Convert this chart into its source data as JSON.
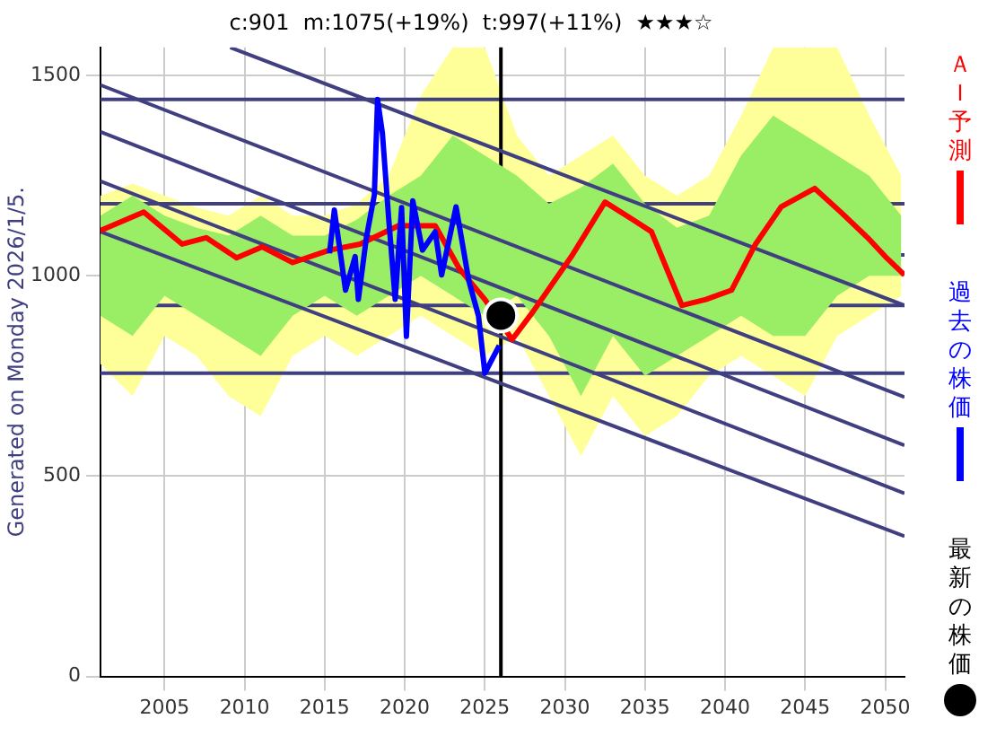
{
  "chart_data": {
    "type": "line",
    "title": "c:901  m:1075(+19%)  t:997(+11%)  ★★★☆",
    "annotations": [
      "Generated on Monday 2026/1/5."
    ],
    "xlim": [
      2001,
      2051.2
    ],
    "xticks": [
      2005,
      2010,
      2015,
      2020,
      2025,
      2030,
      2035,
      2040,
      2045,
      2050
    ],
    "ylim": [
      0,
      1570
    ],
    "yticks": [
      0,
      500,
      1000,
      1500
    ],
    "grid": true,
    "legend": "right",
    "marker": "none",
    "series": [
      {
        "color": "#ffff99",
        "x": [
          2001,
          2003,
          2005,
          2007,
          2009,
          2011,
          2013,
          2015,
          2017,
          2019,
          2021,
          2023,
          2025,
          2027,
          2029,
          2031,
          2033,
          2035,
          2037,
          2039,
          2041,
          2043,
          2045,
          2047,
          2049,
          2051
        ],
        "values": [
          null,
          null,
          null,
          null,
          null,
          null,
          null,
          null,
          null,
          null,
          null,
          null,
          null,
          null,
          null,
          null,
          null,
          null,
          null,
          null,
          null,
          null,
          null,
          null,
          null,
          null
        ],
        "lower": [
          780,
          700,
          850,
          800,
          700,
          650,
          800,
          850,
          800,
          850,
          900,
          850,
          800,
          850,
          700,
          550,
          700,
          600,
          650,
          750,
          800,
          750,
          700,
          850,
          900,
          950
        ],
        "upper": [
          1200,
          1230,
          1200,
          1170,
          1150,
          1200,
          1150,
          1150,
          1180,
          1250,
          1450,
          1570,
          1570,
          1350,
          1250,
          1300,
          1350,
          1250,
          1200,
          1250,
          1400,
          1570,
          1570,
          1570,
          1400,
          1250
        ]
      },
      {
        "color": "#99ee66",
        "x": [
          2001,
          2003,
          2005,
          2007,
          2009,
          2011,
          2013,
          2015,
          2017,
          2019,
          2021,
          2023,
          2025,
          2027,
          2029,
          2031,
          2033,
          2035,
          2037,
          2039,
          2041,
          2043,
          2045,
          2047,
          2049,
          2051
        ],
        "values": [
          null,
          null,
          null,
          null,
          null,
          null,
          null,
          null,
          null,
          null,
          null,
          null,
          null,
          null,
          null,
          null,
          null,
          null,
          null,
          null,
          null,
          null,
          null,
          null,
          null,
          null
        ],
        "lower": [
          900,
          850,
          950,
          900,
          850,
          800,
          900,
          950,
          900,
          950,
          1000,
          950,
          900,
          950,
          850,
          700,
          850,
          750,
          800,
          850,
          900,
          850,
          850,
          950,
          1000,
          1000
        ],
        "upper": [
          1150,
          1200,
          1150,
          1120,
          1100,
          1150,
          1100,
          1100,
          1140,
          1200,
          1250,
          1350,
          1300,
          1250,
          1180,
          1220,
          1280,
          1180,
          1120,
          1150,
          1300,
          1400,
          1350,
          1300,
          1250,
          1150
        ]
      },
      {
        "color": "#404080",
        "x": [
          2009.1,
          2051.2
        ],
        "values": [
          1570,
          926
        ]
      },
      {
        "color": "#404080",
        "x": [
          2001,
          2051.2
        ],
        "values": [
          1476,
          697
        ]
      },
      {
        "color": "#404080",
        "x": [
          2001,
          2051.2
        ],
        "values": [
          1359,
          577
        ]
      },
      {
        "color": "#404080",
        "x": [
          2001,
          2051.2
        ],
        "values": [
          1236,
          457
        ]
      },
      {
        "color": "#404080",
        "x": [
          2001,
          2051.2
        ],
        "values": [
          1110,
          350
        ]
      },
      {
        "name": "ＡＩ予測",
        "color": "#ff0000",
        "x": [
          2001.0,
          2003.7,
          2006.1,
          2007.6,
          2009.5,
          2011.1,
          2013.0,
          2015.3,
          2017.2,
          2019.6,
          2021.9,
          2023.4,
          2025.0,
          2026.7,
          2028.0,
          2030.4,
          2032.5,
          2034.2,
          2035.4,
          2037.3,
          2038.8,
          2040.4,
          2041.9,
          2043.5,
          2045.6,
          2047.3,
          2048.9,
          2050.0,
          2051.2
        ],
        "values": [
          1113,
          1159,
          1079,
          1095,
          1045,
          1072,
          1033,
          1064,
          1079,
          1125,
          1125,
          1018,
          941,
          841,
          910,
          1048,
          1184,
          1141,
          1110,
          926,
          941,
          964,
          1079,
          1172,
          1218,
          1156,
          1095,
          1048,
          1002
        ]
      },
      {
        "name": "過去の株価",
        "color": "#0000ff",
        "x": [
          2015.3,
          2015.6,
          2016.3,
          2016.9,
          2017.1,
          2017.6,
          2018.1,
          2018.3,
          2018.6,
          2019.0,
          2019.4,
          2019.8,
          2020.1,
          2020.5,
          2021.1,
          2021.9,
          2022.3,
          2023.2,
          2024.0,
          2024.6,
          2025.0,
          2025.3,
          2025.9
        ],
        "values": [
          1056,
          1164,
          964,
          1048,
          941,
          1095,
          1202,
          1440,
          1357,
          1140,
          941,
          1170,
          849,
          1187,
          1064,
          1110,
          1002,
          1172,
          987,
          900,
          757,
          null,
          826
        ]
      },
      {
        "name": "最新の株価",
        "type": "scatter",
        "marker": "circle",
        "color": "#000000",
        "x": [
          2026.0
        ],
        "values": [
          901
        ]
      }
    ],
    "ref_lines": [
      {
        "axis": "y",
        "value": 1440,
        "color": "#404080"
      },
      {
        "axis": "y",
        "value": 1180,
        "color": "#404080"
      },
      {
        "axis": "y",
        "value": 1052,
        "color": "#404080"
      },
      {
        "axis": "y",
        "value": 926,
        "color": "#404080"
      },
      {
        "axis": "y",
        "value": 757,
        "color": "#404080"
      },
      {
        "axis": "x",
        "value": 2026,
        "color": "#000000"
      }
    ]
  }
}
